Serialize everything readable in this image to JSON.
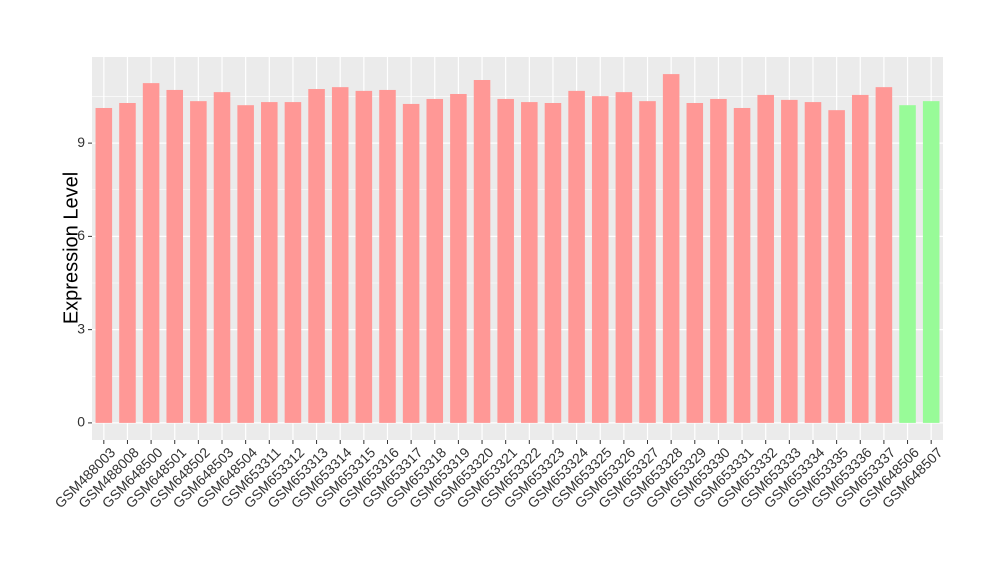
{
  "chart_data": {
    "type": "bar",
    "y_label": "Expression Level",
    "categories": [
      "GSM488003",
      "GSM488008",
      "GSM648500",
      "GSM648501",
      "GSM648502",
      "GSM648503",
      "GSM648504",
      "GSM653311",
      "GSM653312",
      "GSM653313",
      "GSM653314",
      "GSM653315",
      "GSM653316",
      "GSM653317",
      "GSM653318",
      "GSM653319",
      "GSM653320",
      "GSM653321",
      "GSM653322",
      "GSM653323",
      "GSM653324",
      "GSM653325",
      "GSM653326",
      "GSM653327",
      "GSM653328",
      "GSM653329",
      "GSM653330",
      "GSM653331",
      "GSM653332",
      "GSM653333",
      "GSM653334",
      "GSM653335",
      "GSM653336",
      "GSM653337",
      "GSM648506",
      "GSM648507"
    ],
    "values": [
      10.13,
      10.29,
      10.93,
      10.71,
      10.35,
      10.64,
      10.22,
      10.32,
      10.32,
      10.74,
      10.8,
      10.68,
      10.71,
      10.26,
      10.42,
      10.58,
      11.03,
      10.42,
      10.32,
      10.29,
      10.68,
      10.51,
      10.64,
      10.35,
      11.22,
      10.29,
      10.42,
      10.13,
      10.55,
      10.39,
      10.32,
      10.06,
      10.55,
      10.8,
      10.22,
      10.35
    ],
    "colors": [
      "#ff9896",
      "#ff9896",
      "#ff9896",
      "#ff9896",
      "#ff9896",
      "#ff9896",
      "#ff9896",
      "#ff9896",
      "#ff9896",
      "#ff9896",
      "#ff9896",
      "#ff9896",
      "#ff9896",
      "#ff9896",
      "#ff9896",
      "#ff9896",
      "#ff9896",
      "#ff9896",
      "#ff9896",
      "#ff9896",
      "#ff9896",
      "#ff9896",
      "#ff9896",
      "#ff9896",
      "#ff9896",
      "#ff9896",
      "#ff9896",
      "#ff9896",
      "#ff9896",
      "#ff9896",
      "#ff9896",
      "#ff9896",
      "#ff9896",
      "#ff9896",
      "#98fb98",
      "#98fb98"
    ],
    "ylim": [
      -0.55,
      11.77
    ],
    "yticks": [
      0,
      3,
      6,
      9
    ],
    "minor_yticks": [
      1.5,
      4.5,
      7.5,
      10.5
    ],
    "grid": true
  }
}
